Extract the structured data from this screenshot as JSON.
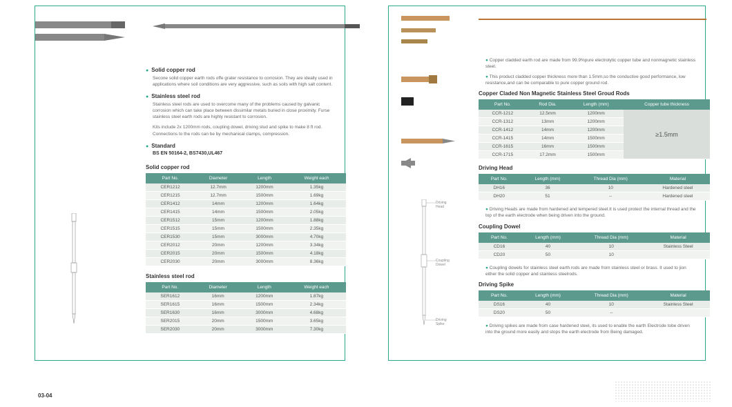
{
  "left": {
    "solid_copper": {
      "title": "Solid copper rod",
      "text": "Secone solid copper earth rods offe grater resistance to corrosion. They are ideally used in applications where soil conditions are very aggressive, such as soils with high salt content."
    },
    "stainless": {
      "title": "Stainless steel rod",
      "text": "Stainless steel rods are used to overcome many of the problems caused by galvanic corrosion which can take place between dissimilar metals buried in close proximity. Furse stainless steel earth rods are highly resistant to corrosion.",
      "text2": "Kits include 2x 1200mm rods, coupling dowel, driving stud and spike to make 8 ft rod. Connections to the rods can be by mechanical clamps, compression."
    },
    "standard": {
      "title": "Standard",
      "value": "BS EN 50164-2, BS7430,UL467"
    },
    "solid_table": {
      "title": "Solid copper rod",
      "headers": [
        "Part No.",
        "Diameter",
        "Length",
        "Weight each"
      ],
      "rows": [
        [
          "CER1212",
          "12.7mm",
          "1200mm",
          "1.35kg"
        ],
        [
          "CER1215",
          "12.7mm",
          "1500mm",
          "1.69kg"
        ],
        [
          "CER1412",
          "14mm",
          "1200mm",
          "1.64kg"
        ],
        [
          "CER1415",
          "14mm",
          "1500mm",
          "2.05kg"
        ],
        [
          "CER1512",
          "15mm",
          "1200mm",
          "1.88kg"
        ],
        [
          "CER1515",
          "15mm",
          "1500mm",
          "2.35kg"
        ],
        [
          "CER1530",
          "15mm",
          "3000mm",
          "4.70kg"
        ],
        [
          "CER2012",
          "20mm",
          "1200mm",
          "3.34kg"
        ],
        [
          "CER2015",
          "20mm",
          "1500mm",
          "4.18kg"
        ],
        [
          "CER2030",
          "20mm",
          "3000mm",
          "8.36kg"
        ]
      ]
    },
    "stainless_table": {
      "title": "Stainless steel rod",
      "headers": [
        "Part No.",
        "Diameter",
        "Length",
        "Weight each"
      ],
      "rows": [
        [
          "SER1612",
          "16mm",
          "1200mm",
          "1.87kg"
        ],
        [
          "SER1615",
          "16mm",
          "1500mm",
          "2.34kg"
        ],
        [
          "SER1630",
          "16mm",
          "3000mm",
          "4.68kg"
        ],
        [
          "SER2015",
          "20mm",
          "1500mm",
          "3.65kg"
        ],
        [
          "SER2030",
          "20mm",
          "3000mm",
          "7.30kg"
        ]
      ]
    }
  },
  "right": {
    "notes": [
      "Copper cladded earth rod are made from 99.9%pure electrolytic copper tube and nonmagnetic stainless steel.",
      "This product cladded copper thickness more than 1.5mm,so the conductive good performance, low resistance,and can be comparable to pure copper ground rod."
    ],
    "main_table": {
      "title": "Copper Claded Non Magnetic Stainless Steel Groud Rods",
      "headers": [
        "Part No.",
        "Rod Dia.",
        "Length (mm)",
        "Copper tube thickness"
      ],
      "rows": [
        [
          "CCR-1212",
          "12.5mm",
          "1200mm"
        ],
        [
          "CCR-1312",
          "13mm",
          "1200mm"
        ],
        [
          "CCR-1412",
          "14mm",
          "1200mm"
        ],
        [
          "CCR-1415",
          "14mm",
          "1500mm"
        ],
        [
          "CCR-1615",
          "16mm",
          "1500mm"
        ],
        [
          "CCR-1715",
          "17.2mm",
          "1500mm"
        ]
      ],
      "merged": "≥1.5mm"
    },
    "driving_head": {
      "title": "Driving Head",
      "headers": [
        "Part No.",
        "Length (mm)",
        "Thread Dia (mm)",
        "Material"
      ],
      "rows": [
        [
          "DH16",
          "36",
          "10",
          "Hardened steel"
        ],
        [
          "DH20",
          "51",
          "--",
          "Hardened steel"
        ]
      ],
      "note": "Driving Heads are made from hardened and tempered steel.It is used protect the internal thread and the top of the earth electrode when being driven into the ground."
    },
    "coupling": {
      "title": "Coupling Dowel",
      "headers": [
        "Part No.",
        "Length (mm)",
        "Thread Dia (mm)",
        "Material"
      ],
      "rows": [
        [
          "CD16",
          "40",
          "10",
          "Stainless Steel"
        ],
        [
          "CD20",
          "50",
          "10",
          ""
        ]
      ],
      "note": "Coupling dowels for stainless steel earth rods are made from stainless steel or brass. It used to jion either the solid copper and stainless steelrods."
    },
    "spike": {
      "title": "Driving Spike",
      "headers": [
        "Part No.",
        "Length (mm)",
        "Thread Dia (mm)",
        "Material"
      ],
      "rows": [
        [
          "DS16",
          "40",
          "10",
          "Stainless Steel"
        ],
        [
          "DS20",
          "50",
          "--",
          ""
        ]
      ],
      "note": "Driving spikes are made from case hardened steel, its used to enable the earth Electrode tobe driven into the ground more easily and stops the earth electrode from Being damaged."
    },
    "labels": {
      "driving_head": "Driving Head",
      "coupling": "Coupling Dowel",
      "spike": "Driving Spike"
    }
  },
  "page_num": "03-04"
}
